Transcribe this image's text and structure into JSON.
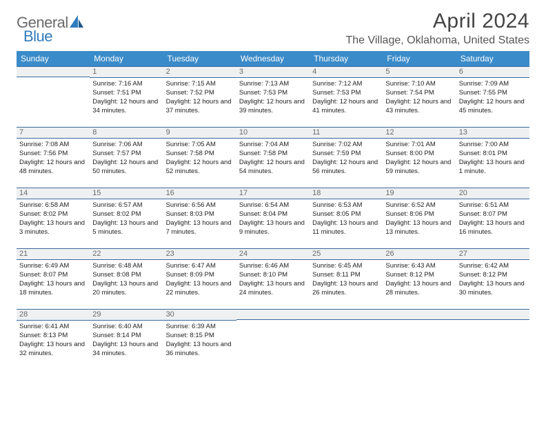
{
  "brand": {
    "general": "General",
    "blue": "Blue"
  },
  "title": "April 2024",
  "location": "The Village, Oklahoma, United States",
  "headers": [
    "Sunday",
    "Monday",
    "Tuesday",
    "Wednesday",
    "Thursday",
    "Friday",
    "Saturday"
  ],
  "colors": {
    "header_bg": "#3a8bc9",
    "header_text": "#ffffff",
    "daybar_bg": "#eef0f2",
    "daybar_border": "#3a6a9a",
    "text": "#222222",
    "logo_gray": "#6a6a6a",
    "logo_blue": "#2f7bbf"
  },
  "weeks": [
    [
      {
        "num": "",
        "lines": []
      },
      {
        "num": "1",
        "lines": [
          "Sunrise: 7:16 AM",
          "Sunset: 7:51 PM",
          "Daylight: 12 hours and 34 minutes."
        ]
      },
      {
        "num": "2",
        "lines": [
          "Sunrise: 7:15 AM",
          "Sunset: 7:52 PM",
          "Daylight: 12 hours and 37 minutes."
        ]
      },
      {
        "num": "3",
        "lines": [
          "Sunrise: 7:13 AM",
          "Sunset: 7:53 PM",
          "Daylight: 12 hours and 39 minutes."
        ]
      },
      {
        "num": "4",
        "lines": [
          "Sunrise: 7:12 AM",
          "Sunset: 7:53 PM",
          "Daylight: 12 hours and 41 minutes."
        ]
      },
      {
        "num": "5",
        "lines": [
          "Sunrise: 7:10 AM",
          "Sunset: 7:54 PM",
          "Daylight: 12 hours and 43 minutes."
        ]
      },
      {
        "num": "6",
        "lines": [
          "Sunrise: 7:09 AM",
          "Sunset: 7:55 PM",
          "Daylight: 12 hours and 45 minutes."
        ]
      }
    ],
    [
      {
        "num": "7",
        "lines": [
          "Sunrise: 7:08 AM",
          "Sunset: 7:56 PM",
          "Daylight: 12 hours and 48 minutes."
        ]
      },
      {
        "num": "8",
        "lines": [
          "Sunrise: 7:06 AM",
          "Sunset: 7:57 PM",
          "Daylight: 12 hours and 50 minutes."
        ]
      },
      {
        "num": "9",
        "lines": [
          "Sunrise: 7:05 AM",
          "Sunset: 7:58 PM",
          "Daylight: 12 hours and 52 minutes."
        ]
      },
      {
        "num": "10",
        "lines": [
          "Sunrise: 7:04 AM",
          "Sunset: 7:58 PM",
          "Daylight: 12 hours and 54 minutes."
        ]
      },
      {
        "num": "11",
        "lines": [
          "Sunrise: 7:02 AM",
          "Sunset: 7:59 PM",
          "Daylight: 12 hours and 56 minutes."
        ]
      },
      {
        "num": "12",
        "lines": [
          "Sunrise: 7:01 AM",
          "Sunset: 8:00 PM",
          "Daylight: 12 hours and 59 minutes."
        ]
      },
      {
        "num": "13",
        "lines": [
          "Sunrise: 7:00 AM",
          "Sunset: 8:01 PM",
          "Daylight: 13 hours and 1 minute."
        ]
      }
    ],
    [
      {
        "num": "14",
        "lines": [
          "Sunrise: 6:58 AM",
          "Sunset: 8:02 PM",
          "Daylight: 13 hours and 3 minutes."
        ]
      },
      {
        "num": "15",
        "lines": [
          "Sunrise: 6:57 AM",
          "Sunset: 8:02 PM",
          "Daylight: 13 hours and 5 minutes."
        ]
      },
      {
        "num": "16",
        "lines": [
          "Sunrise: 6:56 AM",
          "Sunset: 8:03 PM",
          "Daylight: 13 hours and 7 minutes."
        ]
      },
      {
        "num": "17",
        "lines": [
          "Sunrise: 6:54 AM",
          "Sunset: 8:04 PM",
          "Daylight: 13 hours and 9 minutes."
        ]
      },
      {
        "num": "18",
        "lines": [
          "Sunrise: 6:53 AM",
          "Sunset: 8:05 PM",
          "Daylight: 13 hours and 11 minutes."
        ]
      },
      {
        "num": "19",
        "lines": [
          "Sunrise: 6:52 AM",
          "Sunset: 8:06 PM",
          "Daylight: 13 hours and 13 minutes."
        ]
      },
      {
        "num": "20",
        "lines": [
          "Sunrise: 6:51 AM",
          "Sunset: 8:07 PM",
          "Daylight: 13 hours and 16 minutes."
        ]
      }
    ],
    [
      {
        "num": "21",
        "lines": [
          "Sunrise: 6:49 AM",
          "Sunset: 8:07 PM",
          "Daylight: 13 hours and 18 minutes."
        ]
      },
      {
        "num": "22",
        "lines": [
          "Sunrise: 6:48 AM",
          "Sunset: 8:08 PM",
          "Daylight: 13 hours and 20 minutes."
        ]
      },
      {
        "num": "23",
        "lines": [
          "Sunrise: 6:47 AM",
          "Sunset: 8:09 PM",
          "Daylight: 13 hours and 22 minutes."
        ]
      },
      {
        "num": "24",
        "lines": [
          "Sunrise: 6:46 AM",
          "Sunset: 8:10 PM",
          "Daylight: 13 hours and 24 minutes."
        ]
      },
      {
        "num": "25",
        "lines": [
          "Sunrise: 6:45 AM",
          "Sunset: 8:11 PM",
          "Daylight: 13 hours and 26 minutes."
        ]
      },
      {
        "num": "26",
        "lines": [
          "Sunrise: 6:43 AM",
          "Sunset: 8:12 PM",
          "Daylight: 13 hours and 28 minutes."
        ]
      },
      {
        "num": "27",
        "lines": [
          "Sunrise: 6:42 AM",
          "Sunset: 8:12 PM",
          "Daylight: 13 hours and 30 minutes."
        ]
      }
    ],
    [
      {
        "num": "28",
        "lines": [
          "Sunrise: 6:41 AM",
          "Sunset: 8:13 PM",
          "Daylight: 13 hours and 32 minutes."
        ]
      },
      {
        "num": "29",
        "lines": [
          "Sunrise: 6:40 AM",
          "Sunset: 8:14 PM",
          "Daylight: 13 hours and 34 minutes."
        ]
      },
      {
        "num": "30",
        "lines": [
          "Sunrise: 6:39 AM",
          "Sunset: 8:15 PM",
          "Daylight: 13 hours and 36 minutes."
        ]
      },
      {
        "num": "",
        "lines": []
      },
      {
        "num": "",
        "lines": []
      },
      {
        "num": "",
        "lines": []
      },
      {
        "num": "",
        "lines": []
      }
    ]
  ]
}
